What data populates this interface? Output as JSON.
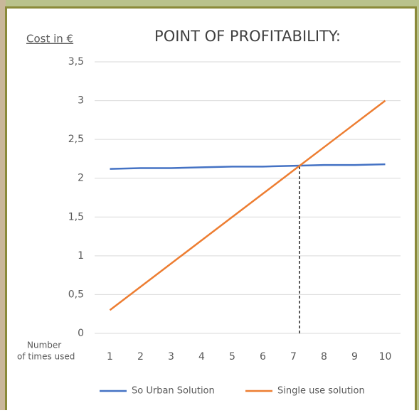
{
  "chart_data": {
    "type": "line",
    "title": "POINT OF PROFITABILITY:",
    "y_label": "Cost in €",
    "x_label": [
      "Number",
      "of times used"
    ],
    "categories": [
      "1",
      "2",
      "3",
      "4",
      "5",
      "6",
      "7",
      "8",
      "9",
      "10"
    ],
    "series": [
      {
        "name": "So Urban Solution",
        "color": "#4472c4",
        "values": [
          2.12,
          2.13,
          2.13,
          2.14,
          2.15,
          2.15,
          2.16,
          2.17,
          2.17,
          2.18
        ]
      },
      {
        "name": "Single use solution",
        "color": "#ed7d31",
        "values": [
          0.3,
          0.6,
          0.9,
          1.2,
          1.5,
          1.8,
          2.1,
          2.4,
          2.7,
          3.0
        ]
      }
    ],
    "breakeven": {
      "x": 7.2,
      "y": 2.16
    },
    "ylim": [
      0,
      3.5
    ],
    "yticks": [
      0,
      {
        "value": 0.5,
        "label": "0,5"
      },
      1,
      {
        "value": 1.5,
        "label": "1,5"
      },
      2,
      {
        "value": 2.5,
        "label": "2,5"
      },
      3,
      {
        "value": 3.5,
        "label": "3,5"
      }
    ],
    "grid": true
  }
}
